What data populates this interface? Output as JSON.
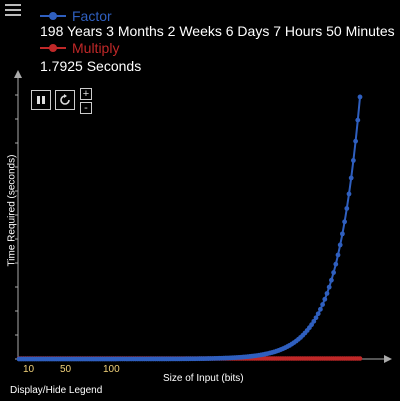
{
  "legend": {
    "series": [
      {
        "name": "Factor",
        "color": "#2f5fbf",
        "value": "198 Years 3 Months 2 Weeks 6 Days 7 Hours 50 Minutes"
      },
      {
        "name": "Multiply",
        "color": "#c02828",
        "value": "1.7925 Seconds"
      }
    ]
  },
  "controls": {
    "pause_icon": "pause-icon",
    "reset_icon": "refresh-icon",
    "zoom_in": "+",
    "zoom_out": "-"
  },
  "chart": {
    "xlabel": "Size of Input (bits)",
    "ylabel": "Time Required (seconds)",
    "xticks": [
      "10",
      "50",
      "100"
    ]
  },
  "legend_toggle": "Display/Hide Legend",
  "chart_data": {
    "type": "line",
    "title": "",
    "xlabel": "Size of Input (bits)",
    "ylabel": "Time Required (seconds)",
    "x_tick_labels": [
      "10",
      "50",
      "100"
    ],
    "series": [
      {
        "name": "Factor",
        "color": "#2f5fbf",
        "shape": "exponential growth, near zero until the right end then rising steeply to the top of the plot"
      },
      {
        "name": "Multiply",
        "color": "#c02828",
        "shape": "flat near zero across the whole range"
      }
    ],
    "grid": false,
    "legend": "top-left"
  }
}
